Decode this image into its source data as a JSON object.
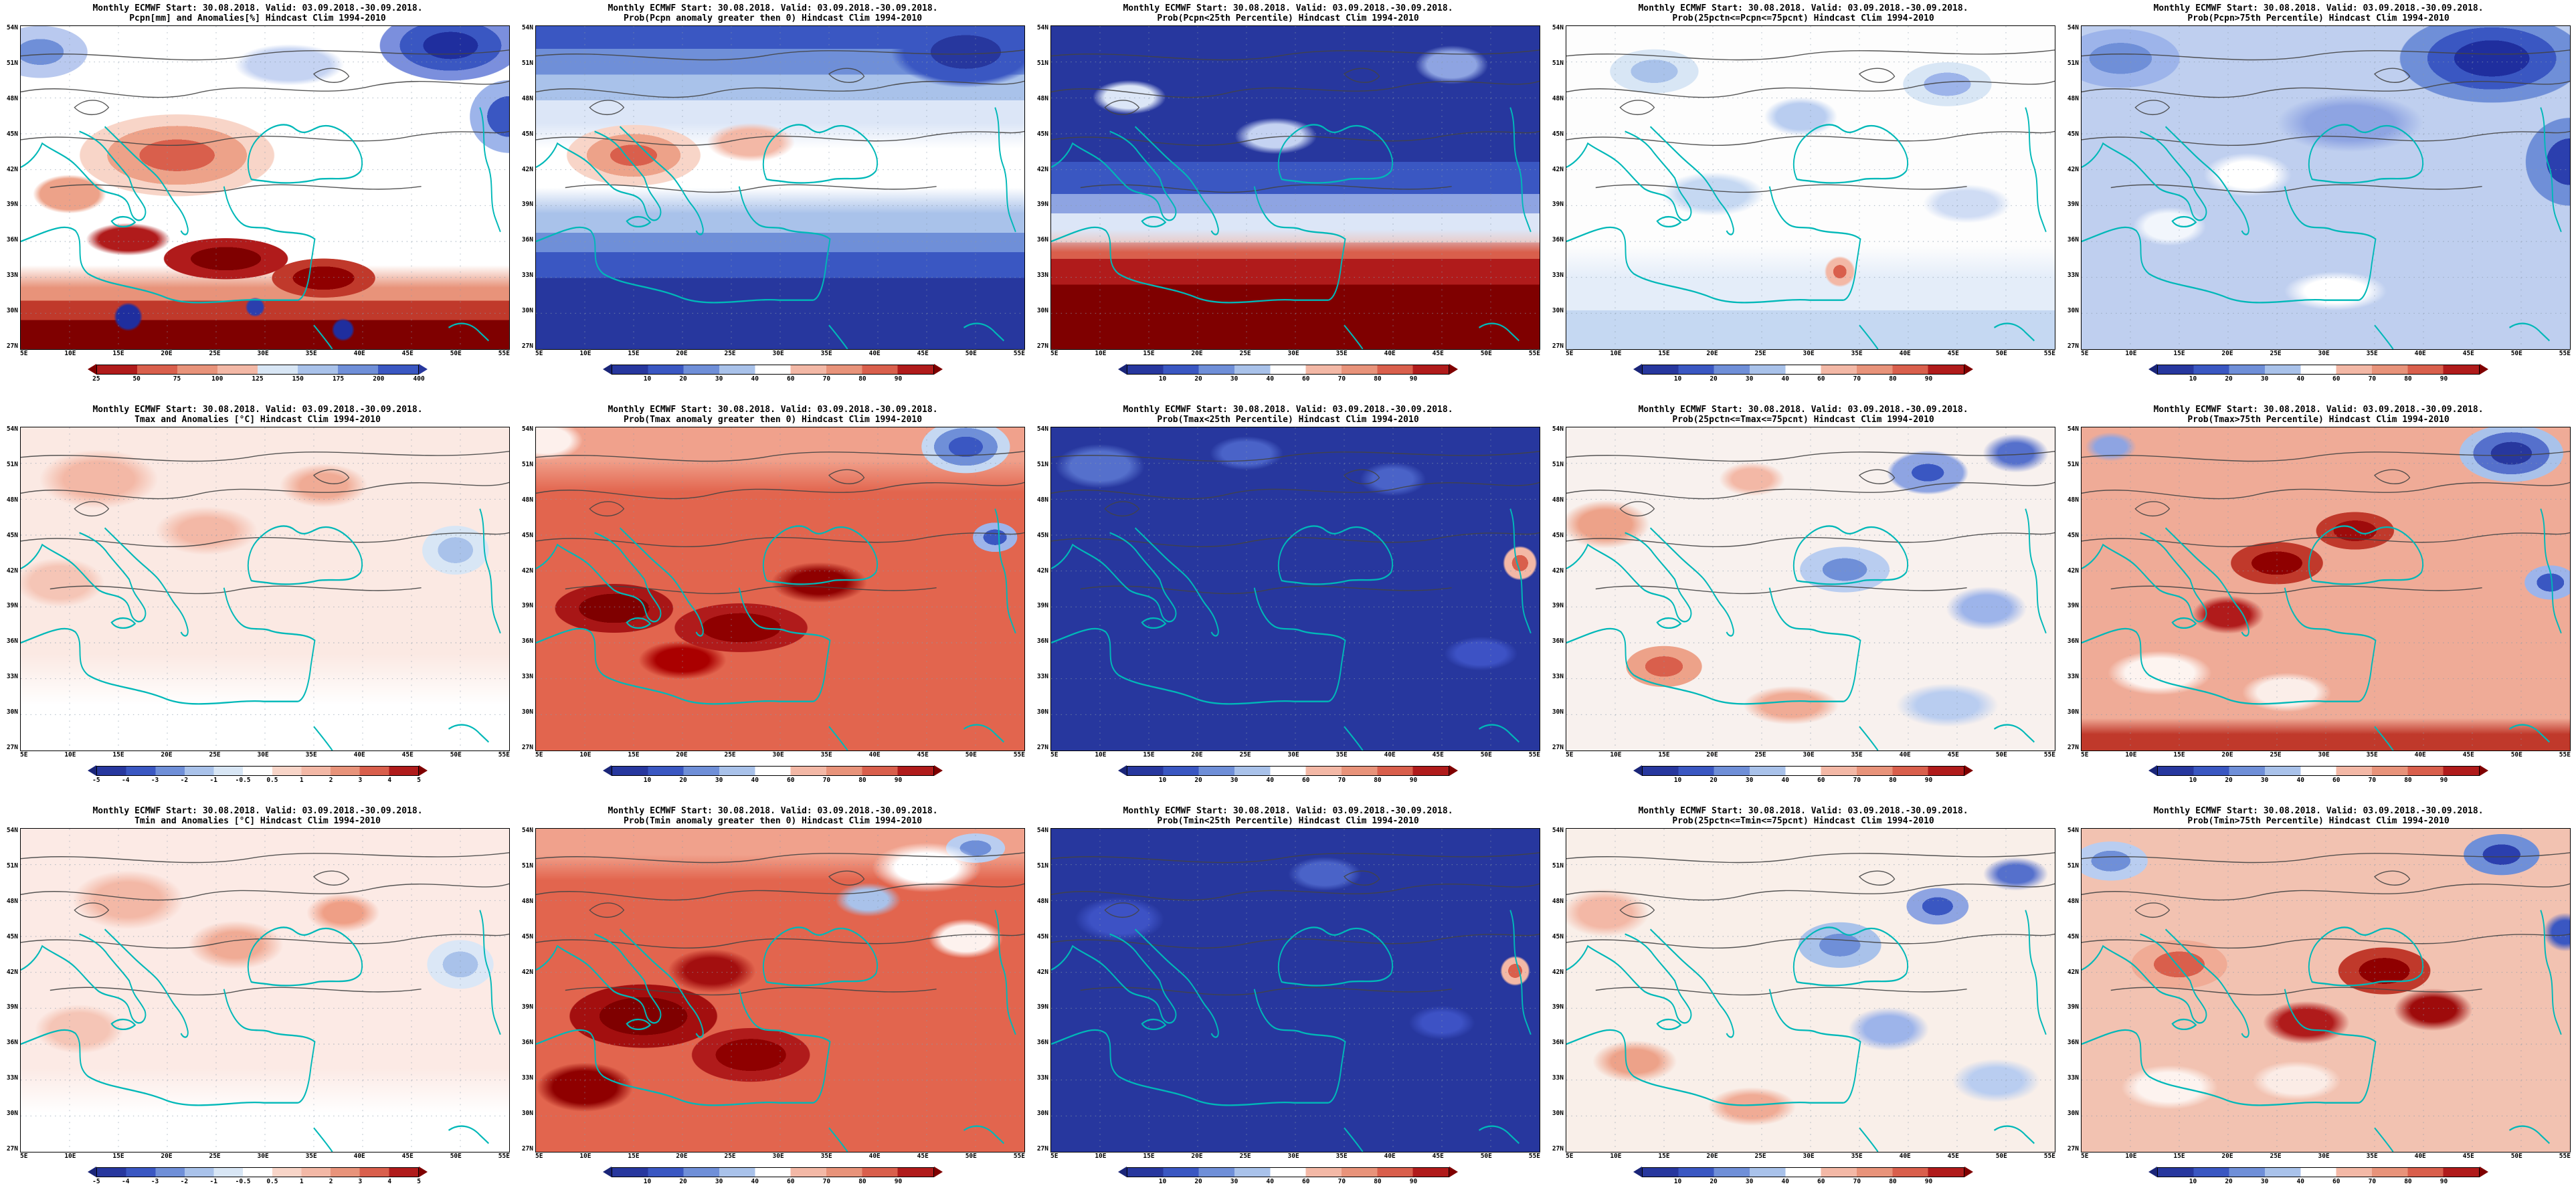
{
  "page": {
    "background": "#ffffff"
  },
  "axes": {
    "lat": [
      "54N",
      "51N",
      "48N",
      "45N",
      "42N",
      "39N",
      "36N",
      "33N",
      "30N",
      "27N"
    ],
    "lon": [
      "5E",
      "10E",
      "15E",
      "20E",
      "25E",
      "30E",
      "35E",
      "40E",
      "45E",
      "50E",
      "55E"
    ]
  },
  "colorbars": {
    "pcpn_anom": {
      "ticks": [
        "25",
        "50",
        "75",
        "100",
        "125",
        "150",
        "175",
        "200",
        "400"
      ],
      "tick_mode": "ends",
      "colors": [
        "#b01b1b",
        "#d95f4c",
        "#e8937a",
        "#f3b8a6",
        "#d8e6f5",
        "#a9c2ea",
        "#6f8fd8",
        "#3a57c2"
      ],
      "arrow_left": "#7f0000",
      "arrow_right": "#27379e"
    },
    "prob": {
      "ticks": [
        "10",
        "20",
        "30",
        "40",
        "60",
        "70",
        "80",
        "90"
      ],
      "tick_mode": "inner",
      "colors": [
        "#27379e",
        "#3a57c2",
        "#6f8fd8",
        "#a9c2ea",
        "#ffffff",
        "#f3b8a6",
        "#e8937a",
        "#d95f4c",
        "#b01b1b"
      ],
      "arrow_left": "#1a2578",
      "arrow_right": "#7f0000"
    },
    "temp_anom": {
      "ticks": [
        "-5",
        "-4",
        "-3",
        "-2",
        "-1",
        "-0.5",
        "0.5",
        "1",
        "2",
        "3",
        "4",
        "5"
      ],
      "tick_mode": "ends",
      "colors": [
        "#27379e",
        "#3a57c2",
        "#6f8fd8",
        "#a9c2ea",
        "#d8e6f5",
        "#ffffff",
        "#f8d5c8",
        "#f3b8a6",
        "#e8937a",
        "#d95f4c",
        "#b01b1b"
      ],
      "arrow_left": "#1a2578",
      "arrow_right": "#7f0000"
    }
  },
  "panels": [
    {
      "id": "r1c1",
      "variable": "Pcpn",
      "kind": "value_and_anomaly",
      "colorbar": "pcpn_anom",
      "title_line1": "Monthly ECMWF Start: 30.08.2018. Valid: 03.09.2018.-30.09.2018.",
      "title_line2": "Pcpn[mm] and Anomalies[%] Hindcast Clim 1994-2010"
    },
    {
      "id": "r1c2",
      "variable": "Pcpn",
      "kind": "prob_anomaly_gt0",
      "colorbar": "prob",
      "title_line1": "Monthly ECMWF Start: 30.08.2018. Valid: 03.09.2018.-30.09.2018.",
      "title_line2": "Prob(Pcpn anomaly greater then 0) Hindcast Clim 1994-2010"
    },
    {
      "id": "r1c3",
      "variable": "Pcpn",
      "kind": "prob_lt_25th",
      "colorbar": "prob",
      "title_line1": "Monthly ECMWF Start: 30.08.2018. Valid: 03.09.2018.-30.09.2018.",
      "title_line2": "Prob(Pcpn<25th Percentile) Hindcast Clim 1994-2010"
    },
    {
      "id": "r1c4",
      "variable": "Pcpn",
      "kind": "prob_25_75",
      "colorbar": "prob",
      "title_line1": "Monthly ECMWF Start: 30.08.2018. Valid: 03.09.2018.-30.09.2018.",
      "title_line2": "Prob(25pctn<=Pcpn<=75pcnt) Hindcast Clim 1994-2010"
    },
    {
      "id": "r1c5",
      "variable": "Pcpn",
      "kind": "prob_gt_75th",
      "colorbar": "prob",
      "title_line1": "Monthly ECMWF Start: 30.08.2018. Valid: 03.09.2018.-30.09.2018.",
      "title_line2": "Prob(Pcpn>75th Percentile) Hindcast Clim 1994-2010"
    },
    {
      "id": "r2c1",
      "variable": "Tmax",
      "kind": "value_and_anomaly",
      "colorbar": "temp_anom",
      "title_line1": "Monthly ECMWF Start: 30.08.2018. Valid: 03.09.2018.-30.09.2018.",
      "title_line2": "Tmax and Anomalies [°C] Hindcast Clim 1994-2010"
    },
    {
      "id": "r2c2",
      "variable": "Tmax",
      "kind": "prob_anomaly_gt0",
      "colorbar": "prob",
      "title_line1": "Monthly ECMWF Start: 30.08.2018. Valid: 03.09.2018.-30.09.2018.",
      "title_line2": "Prob(Tmax anomaly greater then 0) Hindcast Clim 1994-2010"
    },
    {
      "id": "r2c3",
      "variable": "Tmax",
      "kind": "prob_lt_25th",
      "colorbar": "prob",
      "title_line1": "Monthly ECMWF Start: 30.08.2018. Valid: 03.09.2018.-30.09.2018.",
      "title_line2": "Prob(Tmax<25th Percentile) Hindcast Clim 1994-2010"
    },
    {
      "id": "r2c4",
      "variable": "Tmax",
      "kind": "prob_25_75",
      "colorbar": "prob",
      "title_line1": "Monthly ECMWF Start: 30.08.2018. Valid: 03.09.2018.-30.09.2018.",
      "title_line2": "Prob(25pctn<=Tmax<=75pcnt) Hindcast Clim 1994-2010"
    },
    {
      "id": "r2c5",
      "variable": "Tmax",
      "kind": "prob_gt_75th",
      "colorbar": "prob",
      "title_line1": "Monthly ECMWF Start: 30.08.2018. Valid: 03.09.2018.-30.09.2018.",
      "title_line2": "Prob(Tmax>75th Percentile) Hindcast Clim 1994-2010"
    },
    {
      "id": "r3c1",
      "variable": "Tmin",
      "kind": "value_and_anomaly",
      "colorbar": "temp_anom",
      "title_line1": "Monthly ECMWF Start: 30.08.2018. Valid: 03.09.2018.-30.09.2018.",
      "title_line2": "Tmin and Anomalies [°C] Hindcast Clim 1994-2010"
    },
    {
      "id": "r3c2",
      "variable": "Tmin",
      "kind": "prob_anomaly_gt0",
      "colorbar": "prob",
      "title_line1": "Monthly ECMWF Start: 30.08.2018. Valid: 03.09.2018.-30.09.2018.",
      "title_line2": "Prob(Tmin anomaly greater then 0) Hindcast Clim 1994-2010"
    },
    {
      "id": "r3c3",
      "variable": "Tmin",
      "kind": "prob_lt_25th",
      "colorbar": "prob",
      "title_line1": "Monthly ECMWF Start: 30.08.2018. Valid: 03.09.2018.-30.09.2018.",
      "title_line2": "Prob(Tmin<25th Percentile) Hindcast Clim 1994-2010"
    },
    {
      "id": "r3c4",
      "variable": "Tmin",
      "kind": "prob_25_75",
      "colorbar": "prob",
      "title_line1": "Monthly ECMWF Start: 30.08.2018. Valid: 03.09.2018.-30.09.2018.",
      "title_line2": "Prob(25pctn<=Tmin<=75pcnt) Hindcast Clim 1994-2010"
    },
    {
      "id": "r3c5",
      "variable": "Tmin",
      "kind": "prob_gt_75th",
      "colorbar": "prob",
      "title_line1": "Monthly ECMWF Start: 30.08.2018. Valid: 03.09.2018.-30.09.2018.",
      "title_line2": "Prob(Tmin>75th Percentile) Hindcast Clim 1994-2010"
    }
  ]
}
